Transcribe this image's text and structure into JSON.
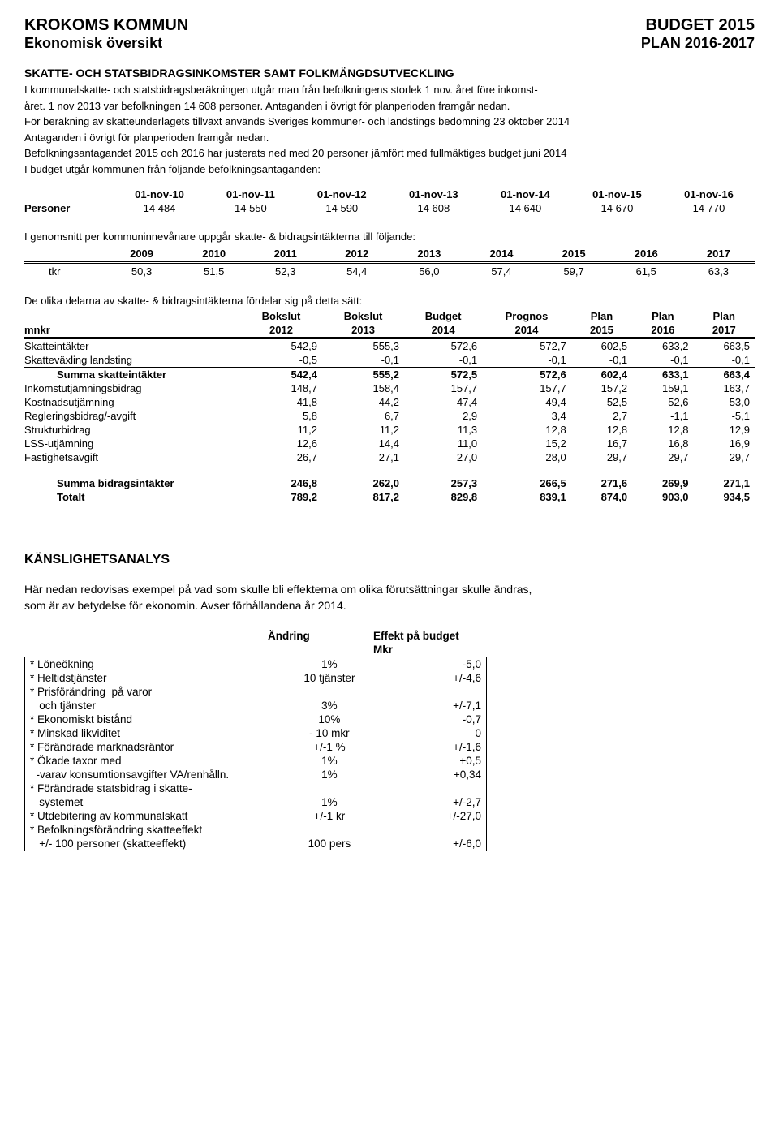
{
  "header": {
    "org": "KROKOMS KOMMUN",
    "sub": "Ekonomisk översikt",
    "right1": "BUDGET 2015",
    "right2": "PLAN  2016-2017"
  },
  "section1": {
    "title": "SKATTE- OCH STATSBIDRAGSINKOMSTER SAMT FOLKMÄNGDSUTVECKLING",
    "p1": "I kommunalskatte- och statsbidragsberäkningen utgår man från befolkningens storlek 1 nov. året före inkomst-",
    "p2": "året. 1 nov 2013 var befolkningen 14 608 personer. Antaganden i övrigt för planperioden framgår nedan.",
    "p3": "För beräkning av skatteunderlagets tillväxt används Sveriges kommuner- och landstings bedömning 23 oktober 2014",
    "p4": "Antaganden i övrigt för planperioden framgår nedan.",
    "p5": "Befolkningsantagandet 2015 och 2016 har justerats ned med 20 personer jämfört med fullmäktiges budget juni 2014",
    "p6": "I budget utgår kommunen från följande befolkningsantaganden:"
  },
  "pop": {
    "rowlabel": "Personer",
    "headers": [
      "01-nov-10",
      "01-nov-11",
      "01-nov-12",
      "01-nov-13",
      "01-nov-14",
      "01-nov-15",
      "01-nov-16"
    ],
    "values": [
      "14 484",
      "14 550",
      "14 590",
      "14 608",
      "14 640",
      "14 670",
      "14 770"
    ]
  },
  "avg": {
    "intro": "I genomsnitt per kommuninnevånare uppgår skatte- & bidragsintäkterna till följande:",
    "rowlabel": "tkr",
    "years": [
      "2009",
      "2010",
      "2011",
      "2012",
      "2013",
      "2014",
      "2015",
      "2016",
      "2017"
    ],
    "values": [
      "50,3",
      "51,5",
      "52,3",
      "54,4",
      "56,0",
      "57,4",
      "59,7",
      "61,5",
      "63,3"
    ]
  },
  "fin": {
    "intro": "De olika delarna av skatte- & bidragsintäkterna fördelar sig på detta sätt:",
    "unit": "mnkr",
    "colhdr1": [
      "",
      "Bokslut",
      "Bokslut",
      "Budget",
      "Prognos",
      "Plan",
      "Plan",
      "Plan"
    ],
    "colhdr2": [
      "mnkr",
      "2012",
      "2013",
      "2014",
      "2014",
      "2015",
      "2016",
      "2017"
    ],
    "rows": [
      {
        "label": "Skatteintäkter",
        "v": [
          "542,9",
          "555,3",
          "572,6",
          "572,7",
          "602,5",
          "633,2",
          "663,5"
        ]
      },
      {
        "label": "Skatteväxling landsting",
        "v": [
          "-0,5",
          "-0,1",
          "-0,1",
          "-0,1",
          "-0,1",
          "-0,1",
          "-0,1"
        ]
      },
      {
        "label": "Summa skatteintäkter",
        "indent": true,
        "bold": true,
        "topline": true,
        "v": [
          "542,4",
          "555,2",
          "572,5",
          "572,6",
          "602,4",
          "633,1",
          "663,4"
        ]
      },
      {
        "label": "Inkomstutjämningsbidrag",
        "v": [
          "148,7",
          "158,4",
          "157,7",
          "157,7",
          "157,2",
          "159,1",
          "163,7"
        ]
      },
      {
        "label": "Kostnadsutjämning",
        "v": [
          "41,8",
          "44,2",
          "47,4",
          "49,4",
          "52,5",
          "52,6",
          "53,0"
        ]
      },
      {
        "label": "Regleringsbidrag/-avgift",
        "v": [
          "5,8",
          "6,7",
          "2,9",
          "3,4",
          "2,7",
          "-1,1",
          "-5,1"
        ]
      },
      {
        "label": "Strukturbidrag",
        "v": [
          "11,2",
          "11,2",
          "11,3",
          "12,8",
          "12,8",
          "12,8",
          "12,9"
        ]
      },
      {
        "label": "LSS-utjämning",
        "v": [
          "12,6",
          "14,4",
          "11,0",
          "15,2",
          "16,7",
          "16,8",
          "16,9"
        ]
      },
      {
        "label": "Fastighetsavgift",
        "v": [
          "26,7",
          "27,1",
          "27,0",
          "28,0",
          "29,7",
          "29,7",
          "29,7"
        ]
      }
    ],
    "sum1": {
      "label": "Summa bidragsintäkter",
      "v": [
        "246,8",
        "262,0",
        "257,3",
        "266,5",
        "271,6",
        "269,9",
        "271,1"
      ]
    },
    "sum2": {
      "label": "Totalt",
      "v": [
        "789,2",
        "817,2",
        "829,8",
        "839,1",
        "874,0",
        "903,0",
        "934,5"
      ]
    }
  },
  "sens": {
    "title": "KÄNSLIGHETSANALYS",
    "intro1": "Här nedan redovisas exempel på vad som skulle bli effekterna om olika förutsättningar skulle ändras,",
    "intro2": "som är av betydelse för ekonomin. Avser förhållandena  år 2014.",
    "h_change": "Ändring",
    "h_effect": "Effekt på budget",
    "h_unit": "Mkr",
    "rows": [
      {
        "label": "* Löneökning",
        "change": "1%",
        "effect": "-5,0"
      },
      {
        "label": "* Heltidstjänster",
        "change": "10 tjänster",
        "effect": "+/-4,6"
      },
      {
        "label": "* Prisförändring  på varor",
        "change": "",
        "effect": ""
      },
      {
        "label": "   och tjänster",
        "change": "3%",
        "effect": "+/-7,1"
      },
      {
        "label": "* Ekonomiskt bistånd",
        "change": "10%",
        "effect": "-0,7"
      },
      {
        "label": "* Minskad likviditet",
        "change": "- 10 mkr",
        "effect": "0"
      },
      {
        "label": "* Förändrade marknadsräntor",
        "change": "+/-1 %",
        "effect": "+/-1,6"
      },
      {
        "label": "* Ökade taxor med",
        "change": "1%",
        "effect": "+0,5"
      },
      {
        "label": "  -varav konsumtionsavgifter VA/renhålln.",
        "change": "1%",
        "effect": "+0,34"
      },
      {
        "label": "* Förändrade statsbidrag i skatte-",
        "change": "",
        "effect": ""
      },
      {
        "label": "   systemet",
        "change": "1%",
        "effect": "+/-2,7"
      },
      {
        "label": "* Utdebitering av kommunalskatt",
        "change": "+/-1 kr",
        "effect": "+/-27,0"
      },
      {
        "label": "* Befolkningsförändring skatteeffekt",
        "change": "",
        "effect": ""
      },
      {
        "label": "   +/- 100 personer (skatteeffekt)",
        "change": "100 pers",
        "effect": "+/-6,0"
      }
    ]
  }
}
